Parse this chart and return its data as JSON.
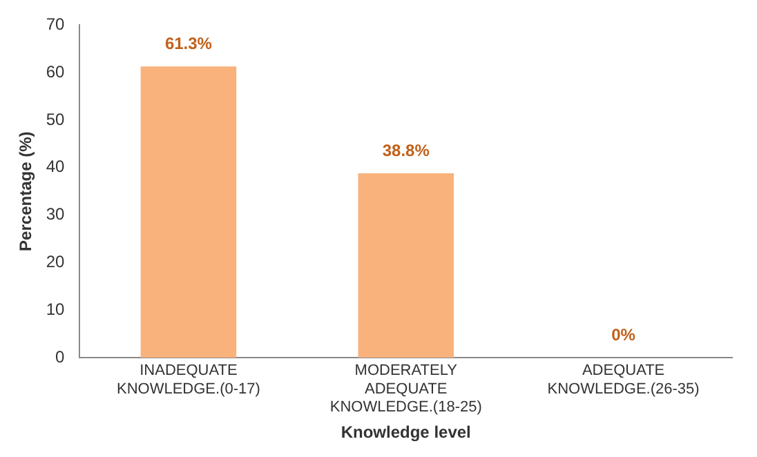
{
  "chart_data": {
    "type": "bar",
    "xlabel": "Knowledge level",
    "ylabel": "Percentage (%)",
    "categories": [
      "INADEQUATE KNOWLEDGE.(0-17)",
      "MODERATELY ADEQUATE KNOWLEDGE.(18-25)",
      "ADEQUATE KNOWLEDGE.(26-35)"
    ],
    "values": [
      61.3,
      38.8,
      0
    ],
    "color": "#f9b27c",
    "value_labels": [
      "61.3%",
      "38.8%",
      "0%"
    ],
    "ylim": [
      0,
      70
    ],
    "yticks": [
      0,
      10,
      20,
      30,
      40,
      50,
      60,
      70
    ],
    "grid": false,
    "legend": false
  }
}
